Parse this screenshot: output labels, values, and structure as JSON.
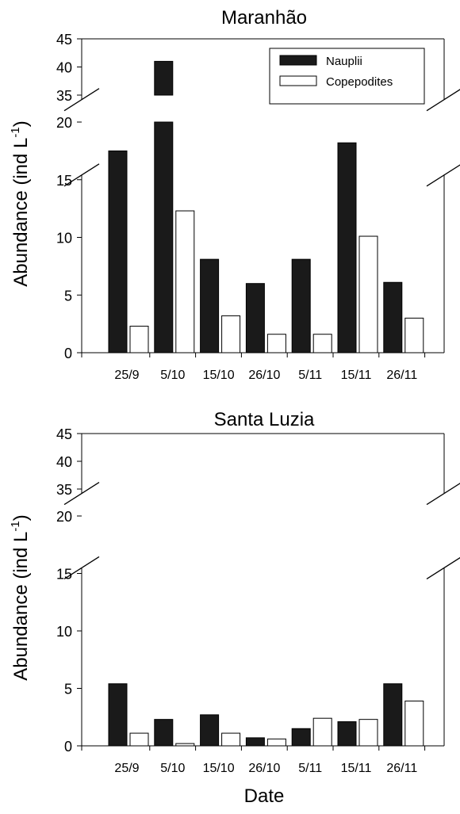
{
  "figure": {
    "xlabel": "Date",
    "ylabel_main": "Abundance (ind L",
    "ylabel_sup": "-1",
    "ylabel_close": ")"
  },
  "legend": {
    "entries": [
      {
        "label": "Nauplii",
        "color": "#1a1a1a"
      },
      {
        "label": "Copepodites",
        "color": "#ffffff"
      }
    ]
  },
  "chart_data": [
    {
      "type": "bar",
      "title": "Maranhão",
      "xlabel": "",
      "ylabel": "Abundance (ind L-1)",
      "categories": [
        "25/9",
        "5/10",
        "15/10",
        "26/10",
        "5/11",
        "15/11",
        "26/11"
      ],
      "series": [
        {
          "name": "Nauplii",
          "color": "#1a1a1a",
          "values": [
            17.5,
            41,
            8.1,
            6.0,
            8.1,
            18.2,
            6.1
          ]
        },
        {
          "name": "Copepodites",
          "color": "#ffffff",
          "values": [
            2.3,
            12.3,
            3.2,
            1.6,
            1.6,
            10.1,
            3.0
          ]
        }
      ],
      "ylim": [
        0,
        45
      ],
      "y_axis_break": [
        20,
        35
      ],
      "yticks": [
        0,
        5,
        10,
        15,
        20,
        35,
        40,
        45
      ],
      "legend": "top-right",
      "grid": false
    },
    {
      "type": "bar",
      "title": "Santa Luzia",
      "xlabel": "Date",
      "ylabel": "Abundance (ind L-1)",
      "categories": [
        "25/9",
        "5/10",
        "15/10",
        "26/10",
        "5/11",
        "15/11",
        "26/11"
      ],
      "series": [
        {
          "name": "Nauplii",
          "color": "#1a1a1a",
          "values": [
            5.4,
            2.3,
            2.7,
            0.7,
            1.5,
            2.1,
            5.4
          ]
        },
        {
          "name": "Copepodites",
          "color": "#ffffff",
          "values": [
            1.1,
            0.2,
            1.1,
            0.6,
            2.4,
            2.3,
            3.9
          ]
        }
      ],
      "ylim": [
        0,
        45
      ],
      "y_axis_break": [
        20,
        35
      ],
      "yticks": [
        0,
        5,
        10,
        15,
        20,
        35,
        40,
        45
      ],
      "legend": "none",
      "grid": false
    }
  ]
}
